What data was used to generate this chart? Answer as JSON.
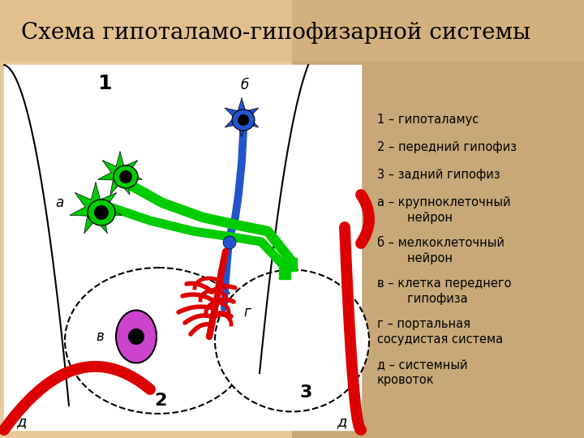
{
  "title": "Схема гипоталамо-гипофизарной системы",
  "title_fontsize": 20,
  "bg_left": "#e8c89a",
  "bg_right": "#c8a878",
  "diagram_bg": "#ffffff",
  "legend_lines": [
    "1 – гипоталамус",
    "2 – передний гипофиз",
    "3 – задний гипофиз",
    "а – крупноклеточный\n     нейрон",
    "б – мелкоклеточный\n     нейрон",
    "в – клетка переднего\n     гипофиза",
    "г – портальная\nсосудистая система",
    "д – системный\nкровоток"
  ],
  "green_color": "#00cc00",
  "blue_color": "#2255cc",
  "red_color": "#dd0000",
  "magenta_color": "#cc44cc",
  "label_fontsize": 10.5,
  "white_color": "#ffffff"
}
